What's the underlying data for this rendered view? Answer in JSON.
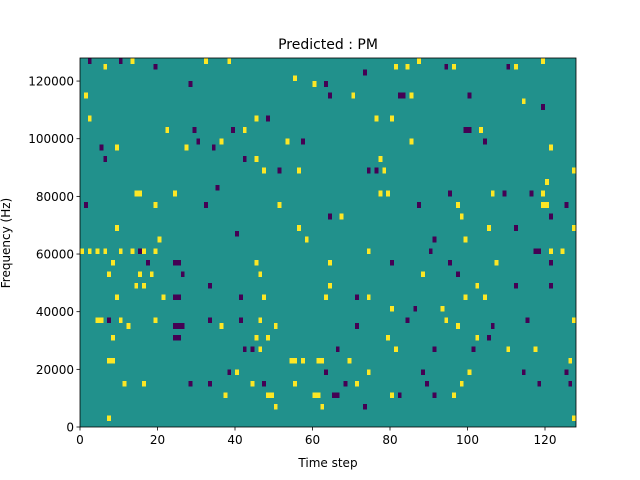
{
  "colors": {
    "background": "#21918c",
    "high": "#fde725",
    "low": "#440154",
    "frame": "#000000"
  },
  "chart_data": {
    "type": "heatmap",
    "title": "Predicted : PM",
    "xlabel": "Time step",
    "ylabel": "Frequency (Hz)",
    "xlim": [
      0,
      128
    ],
    "ylim": [
      0,
      128000
    ],
    "xticks": [
      0,
      20,
      40,
      60,
      80,
      100,
      120
    ],
    "xtick_labels": [
      "0",
      "20",
      "40",
      "60",
      "80",
      "100",
      "120"
    ],
    "yticks": [
      0,
      20000,
      40000,
      60000,
      80000,
      100000,
      120000
    ],
    "ytick_labels": [
      "0",
      "20000",
      "40000",
      "60000",
      "80000",
      "100000",
      "120000"
    ],
    "grid": false,
    "legend": "none",
    "cell": {
      "x_step": 1,
      "y_step": 2000
    },
    "background_value": 0,
    "cells": [
      {
        "x": 2,
        "y": 126000,
        "v": -1
      },
      {
        "x": 6,
        "y": 124000,
        "v": 1
      },
      {
        "x": 10,
        "y": 126000,
        "v": -1
      },
      {
        "x": 13,
        "y": 126000,
        "v": 1
      },
      {
        "x": 19,
        "y": 124000,
        "v": -1
      },
      {
        "x": 28,
        "y": 118000,
        "v": -1
      },
      {
        "x": 32,
        "y": 126000,
        "v": 1
      },
      {
        "x": 38,
        "y": 126000,
        "v": 1
      },
      {
        "x": 55,
        "y": 120000,
        "v": 1
      },
      {
        "x": 60,
        "y": 118000,
        "v": 1
      },
      {
        "x": 63,
        "y": 118000,
        "v": -1
      },
      {
        "x": 73,
        "y": 122000,
        "v": -1
      },
      {
        "x": 81,
        "y": 124000,
        "v": 1
      },
      {
        "x": 84,
        "y": 124000,
        "v": 1
      },
      {
        "x": 87,
        "y": 126000,
        "v": 1
      },
      {
        "x": 94,
        "y": 124000,
        "v": -1
      },
      {
        "x": 96,
        "y": 124000,
        "v": 1
      },
      {
        "x": 110,
        "y": 124000,
        "v": -1
      },
      {
        "x": 112,
        "y": 124000,
        "v": 1
      },
      {
        "x": 119,
        "y": 126000,
        "v": 1
      },
      {
        "x": 1,
        "y": 114000,
        "v": 1
      },
      {
        "x": 64,
        "y": 114000,
        "v": -1
      },
      {
        "x": 70,
        "y": 114000,
        "v": 1
      },
      {
        "x": 82,
        "y": 114000,
        "v": -1
      },
      {
        "x": 83,
        "y": 114000,
        "v": -1
      },
      {
        "x": 85,
        "y": 114000,
        "v": 1
      },
      {
        "x": 100,
        "y": 114000,
        "v": -1
      },
      {
        "x": 114,
        "y": 112000,
        "v": 1
      },
      {
        "x": 119,
        "y": 110000,
        "v": -1
      },
      {
        "x": 2,
        "y": 106000,
        "v": 1
      },
      {
        "x": 45,
        "y": 106000,
        "v": 1
      },
      {
        "x": 48,
        "y": 106000,
        "v": -1
      },
      {
        "x": 76,
        "y": 106000,
        "v": 1
      },
      {
        "x": 80,
        "y": 106000,
        "v": 1
      },
      {
        "x": 22,
        "y": 102000,
        "v": 1
      },
      {
        "x": 29,
        "y": 102000,
        "v": -1
      },
      {
        "x": 39,
        "y": 102000,
        "v": -1
      },
      {
        "x": 42,
        "y": 102000,
        "v": 1
      },
      {
        "x": 99,
        "y": 102000,
        "v": -1
      },
      {
        "x": 100,
        "y": 102000,
        "v": -1
      },
      {
        "x": 103,
        "y": 102000,
        "v": 1
      },
      {
        "x": 30,
        "y": 98000,
        "v": -1
      },
      {
        "x": 36,
        "y": 98000,
        "v": 1
      },
      {
        "x": 53,
        "y": 98000,
        "v": 1
      },
      {
        "x": 57,
        "y": 98000,
        "v": -1
      },
      {
        "x": 85,
        "y": 98000,
        "v": 1
      },
      {
        "x": 104,
        "y": 98000,
        "v": -1
      },
      {
        "x": 5,
        "y": 96000,
        "v": -1
      },
      {
        "x": 9,
        "y": 96000,
        "v": 1
      },
      {
        "x": 27,
        "y": 96000,
        "v": 1
      },
      {
        "x": 34,
        "y": 96000,
        "v": -1
      },
      {
        "x": 121,
        "y": 96000,
        "v": 1
      },
      {
        "x": 6,
        "y": 92000,
        "v": -1
      },
      {
        "x": 42,
        "y": 92000,
        "v": -1
      },
      {
        "x": 45,
        "y": 92000,
        "v": 1
      },
      {
        "x": 77,
        "y": 92000,
        "v": 1
      },
      {
        "x": 47,
        "y": 88000,
        "v": 1
      },
      {
        "x": 51,
        "y": 88000,
        "v": -1
      },
      {
        "x": 56,
        "y": 88000,
        "v": 1
      },
      {
        "x": 74,
        "y": 88000,
        "v": -1
      },
      {
        "x": 76,
        "y": 88000,
        "v": -1
      },
      {
        "x": 78,
        "y": 88000,
        "v": 1
      },
      {
        "x": 127,
        "y": 88000,
        "v": 1
      },
      {
        "x": 35,
        "y": 82000,
        "v": -1
      },
      {
        "x": 120,
        "y": 84000,
        "v": 1
      },
      {
        "x": 14,
        "y": 80000,
        "v": 1
      },
      {
        "x": 15,
        "y": 80000,
        "v": 1
      },
      {
        "x": 24,
        "y": 80000,
        "v": 1
      },
      {
        "x": 77,
        "y": 80000,
        "v": 1
      },
      {
        "x": 79,
        "y": 80000,
        "v": 1
      },
      {
        "x": 95,
        "y": 80000,
        "v": -1
      },
      {
        "x": 106,
        "y": 80000,
        "v": 1
      },
      {
        "x": 109,
        "y": 80000,
        "v": -1
      },
      {
        "x": 116,
        "y": 80000,
        "v": -1
      },
      {
        "x": 119,
        "y": 80000,
        "v": 1
      },
      {
        "x": 1,
        "y": 76000,
        "v": -1
      },
      {
        "x": 19,
        "y": 76000,
        "v": 1
      },
      {
        "x": 32,
        "y": 76000,
        "v": -1
      },
      {
        "x": 51,
        "y": 76000,
        "v": 1
      },
      {
        "x": 87,
        "y": 76000,
        "v": -1
      },
      {
        "x": 97,
        "y": 76000,
        "v": 1
      },
      {
        "x": 119,
        "y": 76000,
        "v": 1
      },
      {
        "x": 120,
        "y": 76000,
        "v": 1
      },
      {
        "x": 125,
        "y": 76000,
        "v": -1
      },
      {
        "x": 64,
        "y": 72000,
        "v": -1
      },
      {
        "x": 67,
        "y": 72000,
        "v": 1
      },
      {
        "x": 98,
        "y": 72000,
        "v": 1
      },
      {
        "x": 121,
        "y": 72000,
        "v": -1
      },
      {
        "x": 9,
        "y": 68000,
        "v": 1
      },
      {
        "x": 56,
        "y": 68000,
        "v": 1
      },
      {
        "x": 105,
        "y": 68000,
        "v": 1
      },
      {
        "x": 112,
        "y": 68000,
        "v": -1
      },
      {
        "x": 127,
        "y": 68000,
        "v": 1
      },
      {
        "x": 40,
        "y": 66000,
        "v": -1
      },
      {
        "x": 20,
        "y": 64000,
        "v": 1
      },
      {
        "x": 58,
        "y": 64000,
        "v": 1
      },
      {
        "x": 91,
        "y": 64000,
        "v": -1
      },
      {
        "x": 99,
        "y": 64000,
        "v": 1
      },
      {
        "x": 0,
        "y": 60000,
        "v": 1
      },
      {
        "x": 2,
        "y": 60000,
        "v": 1
      },
      {
        "x": 4,
        "y": 60000,
        "v": 1
      },
      {
        "x": 6,
        "y": 60000,
        "v": 1
      },
      {
        "x": 10,
        "y": 60000,
        "v": 1
      },
      {
        "x": 13,
        "y": 60000,
        "v": 1
      },
      {
        "x": 15,
        "y": 60000,
        "v": -1
      },
      {
        "x": 16,
        "y": 60000,
        "v": 1
      },
      {
        "x": 19,
        "y": 60000,
        "v": 1
      },
      {
        "x": 74,
        "y": 60000,
        "v": 1
      },
      {
        "x": 90,
        "y": 60000,
        "v": -1
      },
      {
        "x": 117,
        "y": 60000,
        "v": -1
      },
      {
        "x": 118,
        "y": 60000,
        "v": -1
      },
      {
        "x": 121,
        "y": 60000,
        "v": 1
      },
      {
        "x": 124,
        "y": 60000,
        "v": 1
      },
      {
        "x": 8,
        "y": 56000,
        "v": 1
      },
      {
        "x": 17,
        "y": 56000,
        "v": -1
      },
      {
        "x": 24,
        "y": 56000,
        "v": -1
      },
      {
        "x": 25,
        "y": 56000,
        "v": -1
      },
      {
        "x": 45,
        "y": 56000,
        "v": 1
      },
      {
        "x": 64,
        "y": 56000,
        "v": 1
      },
      {
        "x": 80,
        "y": 56000,
        "v": -1
      },
      {
        "x": 95,
        "y": 56000,
        "v": -1
      },
      {
        "x": 107,
        "y": 56000,
        "v": 1
      },
      {
        "x": 121,
        "y": 56000,
        "v": -1
      },
      {
        "x": 7,
        "y": 52000,
        "v": 1
      },
      {
        "x": 15,
        "y": 52000,
        "v": 1
      },
      {
        "x": 18,
        "y": 52000,
        "v": 1
      },
      {
        "x": 26,
        "y": 52000,
        "v": -1
      },
      {
        "x": 46,
        "y": 52000,
        "v": 1
      },
      {
        "x": 88,
        "y": 52000,
        "v": 1
      },
      {
        "x": 97,
        "y": 52000,
        "v": -1
      },
      {
        "x": 14,
        "y": 48000,
        "v": 1
      },
      {
        "x": 16,
        "y": 48000,
        "v": 1
      },
      {
        "x": 33,
        "y": 48000,
        "v": -1
      },
      {
        "x": 64,
        "y": 48000,
        "v": 1
      },
      {
        "x": 102,
        "y": 48000,
        "v": 1
      },
      {
        "x": 112,
        "y": 48000,
        "v": -1
      },
      {
        "x": 121,
        "y": 48000,
        "v": -1
      },
      {
        "x": 9,
        "y": 44000,
        "v": 1
      },
      {
        "x": 21,
        "y": 44000,
        "v": 1
      },
      {
        "x": 24,
        "y": 44000,
        "v": -1
      },
      {
        "x": 25,
        "y": 44000,
        "v": -1
      },
      {
        "x": 41,
        "y": 44000,
        "v": -1
      },
      {
        "x": 47,
        "y": 44000,
        "v": 1
      },
      {
        "x": 63,
        "y": 44000,
        "v": 1
      },
      {
        "x": 71,
        "y": 44000,
        "v": -1
      },
      {
        "x": 74,
        "y": 44000,
        "v": 1
      },
      {
        "x": 99,
        "y": 44000,
        "v": 1
      },
      {
        "x": 104,
        "y": 44000,
        "v": 1
      },
      {
        "x": 86,
        "y": 40000,
        "v": -1
      },
      {
        "x": 80,
        "y": 40000,
        "v": 1
      },
      {
        "x": 93,
        "y": 40000,
        "v": 1
      },
      {
        "x": 4,
        "y": 36000,
        "v": 1
      },
      {
        "x": 5,
        "y": 36000,
        "v": 1
      },
      {
        "x": 7,
        "y": 36000,
        "v": -1
      },
      {
        "x": 10,
        "y": 36000,
        "v": 1
      },
      {
        "x": 19,
        "y": 36000,
        "v": 1
      },
      {
        "x": 33,
        "y": 36000,
        "v": -1
      },
      {
        "x": 41,
        "y": 36000,
        "v": -1
      },
      {
        "x": 46,
        "y": 36000,
        "v": 1
      },
      {
        "x": 84,
        "y": 36000,
        "v": -1
      },
      {
        "x": 94,
        "y": 36000,
        "v": 1
      },
      {
        "x": 115,
        "y": 36000,
        "v": -1
      },
      {
        "x": 127,
        "y": 36000,
        "v": 1
      },
      {
        "x": 12,
        "y": 34000,
        "v": 1
      },
      {
        "x": 24,
        "y": 34000,
        "v": -1
      },
      {
        "x": 25,
        "y": 34000,
        "v": -1
      },
      {
        "x": 26,
        "y": 34000,
        "v": -1
      },
      {
        "x": 36,
        "y": 34000,
        "v": 1
      },
      {
        "x": 50,
        "y": 34000,
        "v": 1
      },
      {
        "x": 71,
        "y": 34000,
        "v": -1
      },
      {
        "x": 97,
        "y": 34000,
        "v": 1
      },
      {
        "x": 106,
        "y": 34000,
        "v": -1
      },
      {
        "x": 8,
        "y": 30000,
        "v": 1
      },
      {
        "x": 24,
        "y": 30000,
        "v": -1
      },
      {
        "x": 25,
        "y": 30000,
        "v": -1
      },
      {
        "x": 45,
        "y": 30000,
        "v": 1
      },
      {
        "x": 48,
        "y": 30000,
        "v": 1
      },
      {
        "x": 79,
        "y": 30000,
        "v": 1
      },
      {
        "x": 102,
        "y": 30000,
        "v": 1
      },
      {
        "x": 105,
        "y": 30000,
        "v": -1
      },
      {
        "x": 42,
        "y": 26000,
        "v": -1
      },
      {
        "x": 44,
        "y": 26000,
        "v": -1
      },
      {
        "x": 46,
        "y": 26000,
        "v": 1
      },
      {
        "x": 66,
        "y": 26000,
        "v": -1
      },
      {
        "x": 81,
        "y": 26000,
        "v": 1
      },
      {
        "x": 91,
        "y": 26000,
        "v": -1
      },
      {
        "x": 101,
        "y": 26000,
        "v": -1
      },
      {
        "x": 110,
        "y": 26000,
        "v": 1
      },
      {
        "x": 117,
        "y": 26000,
        "v": 1
      },
      {
        "x": 7,
        "y": 22000,
        "v": 1
      },
      {
        "x": 8,
        "y": 22000,
        "v": 1
      },
      {
        "x": 54,
        "y": 22000,
        "v": 1
      },
      {
        "x": 55,
        "y": 22000,
        "v": 1
      },
      {
        "x": 57,
        "y": 22000,
        "v": 1
      },
      {
        "x": 61,
        "y": 22000,
        "v": 1
      },
      {
        "x": 62,
        "y": 22000,
        "v": 1
      },
      {
        "x": 69,
        "y": 22000,
        "v": 1
      },
      {
        "x": 126,
        "y": 22000,
        "v": 1
      },
      {
        "x": 38,
        "y": 18000,
        "v": -1
      },
      {
        "x": 40,
        "y": 18000,
        "v": 1
      },
      {
        "x": 63,
        "y": 18000,
        "v": -1
      },
      {
        "x": 74,
        "y": 18000,
        "v": 1
      },
      {
        "x": 88,
        "y": 18000,
        "v": -1
      },
      {
        "x": 100,
        "y": 18000,
        "v": 1
      },
      {
        "x": 114,
        "y": 18000,
        "v": -1
      },
      {
        "x": 125,
        "y": 18000,
        "v": -1
      },
      {
        "x": 11,
        "y": 14000,
        "v": 1
      },
      {
        "x": 16,
        "y": 14000,
        "v": 1
      },
      {
        "x": 28,
        "y": 14000,
        "v": -1
      },
      {
        "x": 33,
        "y": 14000,
        "v": -1
      },
      {
        "x": 44,
        "y": 14000,
        "v": 1
      },
      {
        "x": 47,
        "y": 14000,
        "v": -1
      },
      {
        "x": 55,
        "y": 14000,
        "v": 1
      },
      {
        "x": 68,
        "y": 14000,
        "v": -1
      },
      {
        "x": 71,
        "y": 14000,
        "v": 1
      },
      {
        "x": 89,
        "y": 14000,
        "v": -1
      },
      {
        "x": 98,
        "y": 14000,
        "v": 1
      },
      {
        "x": 118,
        "y": 14000,
        "v": -1
      },
      {
        "x": 126,
        "y": 14000,
        "v": -1
      },
      {
        "x": 37,
        "y": 10000,
        "v": 1
      },
      {
        "x": 48,
        "y": 10000,
        "v": 1
      },
      {
        "x": 49,
        "y": 10000,
        "v": 1
      },
      {
        "x": 60,
        "y": 10000,
        "v": 1
      },
      {
        "x": 61,
        "y": 10000,
        "v": 1
      },
      {
        "x": 65,
        "y": 10000,
        "v": -1
      },
      {
        "x": 66,
        "y": 10000,
        "v": -1
      },
      {
        "x": 80,
        "y": 10000,
        "v": 1
      },
      {
        "x": 82,
        "y": 10000,
        "v": -1
      },
      {
        "x": 91,
        "y": 10000,
        "v": -1
      },
      {
        "x": 96,
        "y": 10000,
        "v": 1
      },
      {
        "x": 50,
        "y": 6000,
        "v": 1
      },
      {
        "x": 62,
        "y": 6000,
        "v": 1
      },
      {
        "x": 73,
        "y": 6000,
        "v": -1
      },
      {
        "x": 127,
        "y": 2000,
        "v": 1
      },
      {
        "x": 7,
        "y": 2000,
        "v": 1
      }
    ]
  }
}
